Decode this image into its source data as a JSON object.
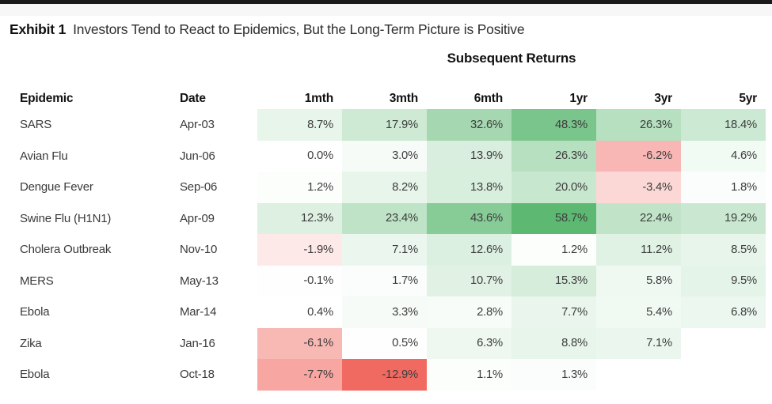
{
  "page": {
    "top_bar_color": "#1a1a1a",
    "background_color": "#ffffff"
  },
  "title": {
    "exhibit_label": "Exhibit 1",
    "text": "Investors Tend to React to Epidemics, But the Long-Term Picture is Positive"
  },
  "table": {
    "group_header": "Subsequent Returns",
    "columns": [
      "Epidemic",
      "Date",
      "1mth",
      "3mth",
      "6mth",
      "1yr",
      "3yr",
      "5yr"
    ]
  },
  "heatmap_colors": {
    "positive_max_color": "#5DB972",
    "negative_max_color": "#F16A62",
    "neutral_color": "#FFFFFF"
  },
  "chart_data": {
    "type": "heatmap",
    "title": "Exhibit 1: Investors Tend to React to Epidemics, But the Long-Term Picture is Positive",
    "group_header": "Subsequent Returns",
    "row_header_columns": [
      "Epidemic",
      "Date"
    ],
    "columns": [
      "1mth",
      "3mth",
      "6mth",
      "1yr",
      "3yr",
      "5yr"
    ],
    "value_format": "percent_one_decimal",
    "color_scale": {
      "min": -12.9,
      "mid": 0,
      "max": 58.7,
      "min_color": "#F16A62",
      "mid_color": "#FFFFFF",
      "max_color": "#5DB972"
    },
    "rows": [
      {
        "epidemic": "SARS",
        "date": "Apr-03",
        "values": [
          8.7,
          17.9,
          32.6,
          48.3,
          26.3,
          18.4
        ]
      },
      {
        "epidemic": "Avian Flu",
        "date": "Jun-06",
        "values": [
          0.0,
          3.0,
          13.9,
          26.3,
          -6.2,
          4.6
        ]
      },
      {
        "epidemic": "Dengue Fever",
        "date": "Sep-06",
        "values": [
          1.2,
          8.2,
          13.8,
          20.0,
          -3.4,
          1.8
        ]
      },
      {
        "epidemic": "Swine Flu (H1N1)",
        "date": "Apr-09",
        "values": [
          12.3,
          23.4,
          43.6,
          58.7,
          22.4,
          19.2
        ]
      },
      {
        "epidemic": "Cholera Outbreak",
        "date": "Nov-10",
        "values": [
          -1.9,
          7.1,
          12.6,
          1.2,
          11.2,
          8.5
        ]
      },
      {
        "epidemic": "MERS",
        "date": "May-13",
        "values": [
          -0.1,
          1.7,
          10.7,
          15.3,
          5.8,
          9.5
        ]
      },
      {
        "epidemic": "Ebola",
        "date": "Mar-14",
        "values": [
          0.4,
          3.3,
          2.8,
          7.7,
          5.4,
          6.8
        ]
      },
      {
        "epidemic": "Zika",
        "date": "Jan-16",
        "values": [
          -6.1,
          0.5,
          6.3,
          8.8,
          7.1,
          null
        ]
      },
      {
        "epidemic": "Ebola",
        "date": "Oct-18",
        "values": [
          -7.7,
          -12.9,
          1.1,
          1.3,
          null,
          null
        ]
      }
    ]
  }
}
